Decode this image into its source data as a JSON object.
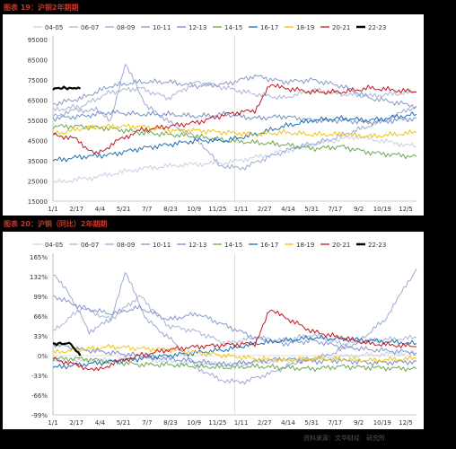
{
  "figures": [
    {
      "title": "图表 19：沪铜2年期期"
    },
    {
      "title": "图表 20：沪铜（同比）2年期期"
    }
  ],
  "footer": {
    "watermark": "资料来源：文华财经　研究所"
  },
  "colors": {
    "04-05": "#c8d0e6",
    "06-07": "#aab6d8",
    "08-09": "#9aaad4",
    "10-11": "#8899cc",
    "12-13": "#7a8fc8",
    "14-15": "#6aa84f",
    "16-17": "#1f6fb2",
    "18-19": "#f1c40f",
    "20-21": "#c0181f",
    "22-23": "#000000"
  },
  "chart_data": [
    {
      "type": "line",
      "title": "",
      "xlabel": "",
      "ylabel": "",
      "x_tick_labels": [
        "1/1",
        "2/17",
        "4/4",
        "5/21",
        "7/7",
        "8/23",
        "10/9",
        "11/25",
        "1/11",
        "2/27",
        "4/14",
        "5/31",
        "7/17",
        "9/2",
        "10/19",
        "12/5"
      ],
      "y_tick_labels": [
        "95000",
        "85000",
        "75000",
        "65000",
        "55000",
        "45000",
        "35000",
        "25000",
        "15000"
      ],
      "ylim": [
        15000,
        95000
      ],
      "x_units": "trading-day index across two years (0–504)",
      "legend": "top",
      "series": [
        {
          "name": "04-05",
          "x": [
            0,
            60,
            120,
            180,
            240,
            300,
            360,
            420,
            504
          ],
          "y": [
            24000,
            27000,
            31000,
            33000,
            34000,
            38000,
            43000,
            47000,
            42000
          ]
        },
        {
          "name": "06-07",
          "x": [
            0,
            40,
            80,
            120,
            160,
            200,
            240,
            280,
            320,
            360,
            400,
            440,
            504
          ],
          "y": [
            60000,
            62000,
            69000,
            71000,
            66000,
            74000,
            71000,
            68000,
            66000,
            70000,
            68000,
            67000,
            69000
          ]
        },
        {
          "name": "08-09",
          "x": [
            0,
            30,
            60,
            80,
            100,
            130,
            170,
            200,
            230,
            260,
            300,
            340,
            380,
            420,
            460,
            504
          ],
          "y": [
            57000,
            60000,
            60000,
            55000,
            83000,
            62000,
            52000,
            46000,
            33000,
            31000,
            37000,
            42000,
            45000,
            50000,
            55000,
            62000
          ]
        },
        {
          "name": "10-11",
          "x": [
            0,
            40,
            80,
            120,
            160,
            200,
            240,
            280,
            320,
            360,
            400,
            440,
            504
          ],
          "y": [
            63000,
            66000,
            72000,
            74000,
            74000,
            72000,
            73000,
            77000,
            74000,
            75000,
            72000,
            66000,
            62000
          ]
        },
        {
          "name": "12-13",
          "x": [
            0,
            40,
            80,
            120,
            160,
            200,
            240,
            280,
            320,
            360,
            400,
            440,
            504
          ],
          "y": [
            56000,
            57000,
            59000,
            58000,
            58000,
            57000,
            58000,
            56000,
            57000,
            55000,
            55000,
            54000,
            56000
          ]
        },
        {
          "name": "14-15",
          "x": [
            0,
            40,
            80,
            120,
            160,
            200,
            240,
            280,
            320,
            360,
            400,
            440,
            504
          ],
          "y": [
            52000,
            52000,
            51000,
            49000,
            48000,
            47000,
            45000,
            44000,
            43000,
            41000,
            42000,
            39000,
            37000
          ]
        },
        {
          "name": "16-17",
          "x": [
            0,
            40,
            80,
            120,
            160,
            200,
            240,
            280,
            320,
            360,
            400,
            440,
            504
          ],
          "y": [
            35000,
            37000,
            38000,
            41000,
            43000,
            45000,
            45000,
            48000,
            52000,
            55000,
            56000,
            55000,
            58000
          ]
        },
        {
          "name": "18-19",
          "x": [
            0,
            40,
            80,
            120,
            160,
            200,
            240,
            280,
            320,
            360,
            400,
            440,
            504
          ],
          "y": [
            48000,
            51000,
            52000,
            52000,
            50000,
            50000,
            49000,
            48000,
            49000,
            48000,
            48000,
            47000,
            49000
          ]
        },
        {
          "name": "20-21",
          "x": [
            0,
            30,
            60,
            90,
            120,
            160,
            200,
            240,
            280,
            300,
            320,
            360,
            400,
            440,
            504
          ],
          "y": [
            48000,
            46000,
            38000,
            45000,
            50000,
            52000,
            54000,
            58000,
            60000,
            72000,
            71000,
            69000,
            69000,
            71000,
            69000
          ]
        },
        {
          "name": "22-23",
          "x": [
            0,
            5,
            10,
            15,
            20,
            25,
            30,
            35,
            38
          ],
          "y": [
            70000,
            71000,
            70500,
            71500,
            70800,
            71200,
            70600,
            71000,
            70700
          ]
        }
      ]
    },
    {
      "type": "line",
      "title": "",
      "xlabel": "",
      "ylabel": "",
      "x_tick_labels": [
        "1/1",
        "2/17",
        "4/4",
        "5/21",
        "7/7",
        "8/23",
        "10/9",
        "11/25",
        "1/11",
        "2/27",
        "4/14",
        "5/31",
        "7/17",
        "9/2",
        "10/19",
        "12/5"
      ],
      "y_tick_labels": [
        "165%",
        "132%",
        "99%",
        "66%",
        "33%",
        "0%",
        "-33%",
        "-66%",
        "-99%"
      ],
      "ylim": [
        -99,
        165
      ],
      "x_units": "trading-day index across two years (0–504)",
      "legend": "top",
      "series": [
        {
          "name": "04-05",
          "x": [
            0,
            60,
            120,
            180,
            240,
            300,
            360,
            420,
            504
          ],
          "y": [
            -10,
            -8,
            -5,
            -12,
            -15,
            -10,
            -5,
            0,
            5
          ]
        },
        {
          "name": "06-07",
          "x": [
            0,
            40,
            80,
            120,
            160,
            200,
            240,
            280,
            320,
            360,
            400,
            440,
            504
          ],
          "y": [
            40,
            80,
            60,
            100,
            50,
            40,
            20,
            30,
            25,
            35,
            20,
            25,
            30
          ]
        },
        {
          "name": "08-09",
          "x": [
            0,
            20,
            50,
            80,
            100,
            130,
            170,
            200,
            230,
            260,
            300,
            340,
            380,
            420,
            460,
            504
          ],
          "y": [
            135,
            110,
            40,
            60,
            140,
            60,
            20,
            -20,
            -40,
            -45,
            -30,
            -10,
            0,
            20,
            60,
            145
          ]
        },
        {
          "name": "10-11",
          "x": [
            0,
            40,
            80,
            120,
            160,
            200,
            240,
            280,
            320,
            360,
            400,
            440,
            504
          ],
          "y": [
            100,
            80,
            70,
            80,
            60,
            70,
            50,
            30,
            20,
            25,
            15,
            10,
            5
          ]
        },
        {
          "name": "12-13",
          "x": [
            0,
            40,
            80,
            120,
            160,
            200,
            240,
            280,
            320,
            360,
            400,
            440,
            504
          ],
          "y": [
            20,
            10,
            5,
            0,
            -5,
            -10,
            -15,
            -10,
            -5,
            -10,
            -8,
            -12,
            -10
          ]
        },
        {
          "name": "14-15",
          "x": [
            0,
            40,
            80,
            120,
            160,
            200,
            240,
            280,
            320,
            360,
            400,
            440,
            504
          ],
          "y": [
            -5,
            -5,
            -10,
            -15,
            -15,
            -18,
            -20,
            -18,
            -20,
            -22,
            -18,
            -20,
            -22
          ]
        },
        {
          "name": "16-17",
          "x": [
            0,
            40,
            80,
            120,
            160,
            200,
            240,
            280,
            320,
            360,
            400,
            440,
            504
          ],
          "y": [
            -20,
            -15,
            -10,
            -5,
            0,
            5,
            10,
            20,
            25,
            30,
            28,
            25,
            20
          ]
        },
        {
          "name": "18-19",
          "x": [
            0,
            40,
            80,
            120,
            160,
            200,
            240,
            280,
            320,
            360,
            400,
            440,
            504
          ],
          "y": [
            5,
            10,
            15,
            12,
            10,
            5,
            0,
            -5,
            -8,
            -5,
            -6,
            -8,
            -5
          ]
        },
        {
          "name": "20-21",
          "x": [
            0,
            30,
            60,
            90,
            120,
            160,
            200,
            240,
            280,
            300,
            320,
            360,
            400,
            440,
            504
          ],
          "y": [
            -5,
            -15,
            -25,
            -10,
            0,
            10,
            15,
            18,
            20,
            75,
            65,
            40,
            30,
            20,
            15
          ]
        },
        {
          "name": "22-23",
          "x": [
            0,
            5,
            10,
            15,
            20,
            25,
            30,
            35,
            38
          ],
          "y": [
            20,
            18,
            21,
            19,
            22,
            20,
            10,
            5,
            0
          ]
        }
      ]
    }
  ]
}
